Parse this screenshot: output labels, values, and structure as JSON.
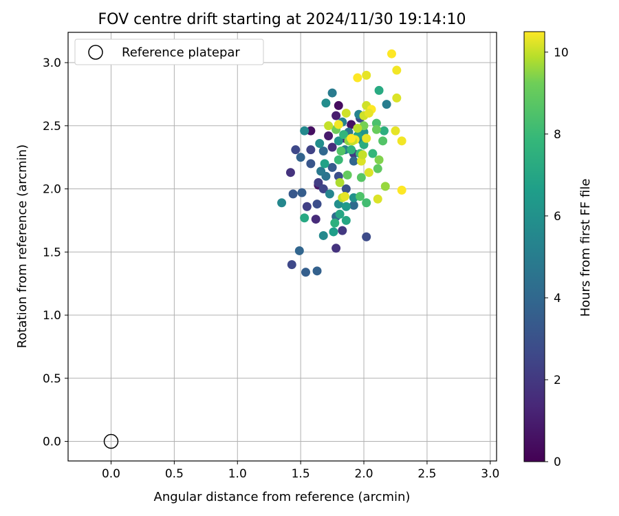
{
  "chart_data": {
    "type": "scatter",
    "title": "FOV centre drift starting at 2024/11/30 19:14:10",
    "xlabel": "Angular distance from reference (arcmin)",
    "ylabel": "Rotation from reference (arcmin)",
    "xlim": [
      -0.34,
      3.05
    ],
    "ylim": [
      -0.155,
      3.24
    ],
    "xticks": [
      "0.0",
      "0.5",
      "1.0",
      "1.5",
      "2.0",
      "2.5",
      "3.0"
    ],
    "yticks": [
      "0.0",
      "0.5",
      "1.0",
      "1.5",
      "2.0",
      "2.5",
      "3.0"
    ],
    "grid": true,
    "legend": {
      "placement": "top-left",
      "entries": [
        {
          "label": "Reference platepar",
          "marker": "open-circle"
        }
      ]
    },
    "reference_point": {
      "x": 0.0,
      "y": 0.0
    },
    "colorbar": {
      "label": "Hours from first FF file",
      "colormap": "viridis",
      "range": [
        0,
        10.5
      ],
      "ticks": [
        "0",
        "2",
        "4",
        "6",
        "8",
        "10"
      ]
    },
    "points": [
      {
        "x": 1.8,
        "y": 2.66,
        "t": 0.4
      },
      {
        "x": 1.58,
        "y": 2.46,
        "t": 0.5
      },
      {
        "x": 1.64,
        "y": 2.03,
        "t": 0.8
      },
      {
        "x": 1.78,
        "y": 2.58,
        "t": 1.0
      },
      {
        "x": 1.9,
        "y": 2.51,
        "t": 0.6
      },
      {
        "x": 1.72,
        "y": 2.42,
        "t": 0.9
      },
      {
        "x": 1.85,
        "y": 2.4,
        "t": 1.2
      },
      {
        "x": 1.75,
        "y": 2.33,
        "t": 1.6
      },
      {
        "x": 1.42,
        "y": 2.13,
        "t": 1.8
      },
      {
        "x": 1.62,
        "y": 1.76,
        "t": 1.5
      },
      {
        "x": 1.78,
        "y": 1.53,
        "t": 1.8
      },
      {
        "x": 1.83,
        "y": 1.67,
        "t": 2.0
      },
      {
        "x": 1.58,
        "y": 2.31,
        "t": 2.4
      },
      {
        "x": 1.46,
        "y": 2.31,
        "t": 2.6
      },
      {
        "x": 1.64,
        "y": 2.05,
        "t": 2.2
      },
      {
        "x": 1.68,
        "y": 2.0,
        "t": 2.5
      },
      {
        "x": 1.55,
        "y": 1.86,
        "t": 2.3
      },
      {
        "x": 1.63,
        "y": 1.88,
        "t": 2.8
      },
      {
        "x": 1.43,
        "y": 1.4,
        "t": 2.6
      },
      {
        "x": 2.02,
        "y": 1.62,
        "t": 2.7
      },
      {
        "x": 1.8,
        "y": 2.1,
        "t": 2.9
      },
      {
        "x": 1.92,
        "y": 2.28,
        "t": 2.1
      },
      {
        "x": 1.86,
        "y": 2.0,
        "t": 3.0
      },
      {
        "x": 1.97,
        "y": 2.56,
        "t": 2.8
      },
      {
        "x": 1.44,
        "y": 1.96,
        "t": 3.3
      },
      {
        "x": 1.51,
        "y": 1.97,
        "t": 3.5
      },
      {
        "x": 1.5,
        "y": 2.25,
        "t": 3.8
      },
      {
        "x": 1.58,
        "y": 2.2,
        "t": 3.2
      },
      {
        "x": 1.54,
        "y": 1.34,
        "t": 3.6
      },
      {
        "x": 1.49,
        "y": 1.51,
        "t": 3.9
      },
      {
        "x": 1.63,
        "y": 1.35,
        "t": 3.7
      },
      {
        "x": 1.75,
        "y": 2.17,
        "t": 3.4
      },
      {
        "x": 1.68,
        "y": 2.3,
        "t": 4.0
      },
      {
        "x": 1.78,
        "y": 1.78,
        "t": 4.2
      },
      {
        "x": 1.92,
        "y": 1.87,
        "t": 4.1
      },
      {
        "x": 1.92,
        "y": 2.22,
        "t": 3.9
      },
      {
        "x": 1.7,
        "y": 2.1,
        "t": 4.5
      },
      {
        "x": 1.66,
        "y": 2.14,
        "t": 4.8
      },
      {
        "x": 1.75,
        "y": 2.76,
        "t": 4.9
      },
      {
        "x": 1.88,
        "y": 2.45,
        "t": 4.6
      },
      {
        "x": 2.18,
        "y": 2.67,
        "t": 5.0
      },
      {
        "x": 1.85,
        "y": 2.31,
        "t": 5.1
      },
      {
        "x": 1.96,
        "y": 2.59,
        "t": 5.3
      },
      {
        "x": 1.83,
        "y": 2.53,
        "t": 5.2
      },
      {
        "x": 1.35,
        "y": 1.89,
        "t": 5.5
      },
      {
        "x": 1.53,
        "y": 2.46,
        "t": 5.6
      },
      {
        "x": 1.7,
        "y": 2.68,
        "t": 5.8
      },
      {
        "x": 1.68,
        "y": 1.63,
        "t": 5.6
      },
      {
        "x": 1.73,
        "y": 1.96,
        "t": 5.4
      },
      {
        "x": 1.8,
        "y": 1.88,
        "t": 5.9
      },
      {
        "x": 1.99,
        "y": 2.38,
        "t": 5.7
      },
      {
        "x": 1.65,
        "y": 2.36,
        "t": 5.8
      },
      {
        "x": 2.0,
        "y": 2.45,
        "t": 6.1
      },
      {
        "x": 1.92,
        "y": 1.93,
        "t": 6.0
      },
      {
        "x": 1.8,
        "y": 2.38,
        "t": 6.2
      },
      {
        "x": 1.86,
        "y": 1.86,
        "t": 6.4
      },
      {
        "x": 1.76,
        "y": 1.66,
        "t": 6.6
      },
      {
        "x": 2.12,
        "y": 2.78,
        "t": 7.2
      },
      {
        "x": 1.86,
        "y": 1.75,
        "t": 7.0
      },
      {
        "x": 1.53,
        "y": 1.77,
        "t": 7.1
      },
      {
        "x": 1.69,
        "y": 2.2,
        "t": 6.8
      },
      {
        "x": 1.81,
        "y": 1.8,
        "t": 7.0
      },
      {
        "x": 2.0,
        "y": 2.35,
        "t": 7.3
      },
      {
        "x": 1.95,
        "y": 2.42,
        "t": 6.9
      },
      {
        "x": 2.16,
        "y": 2.46,
        "t": 7.4
      },
      {
        "x": 1.9,
        "y": 2.31,
        "t": 7.6
      },
      {
        "x": 1.77,
        "y": 1.73,
        "t": 7.5
      },
      {
        "x": 2.07,
        "y": 2.28,
        "t": 7.8
      },
      {
        "x": 1.84,
        "y": 2.43,
        "t": 7.7
      },
      {
        "x": 1.97,
        "y": 2.28,
        "t": 8.0
      },
      {
        "x": 2.02,
        "y": 1.89,
        "t": 8.2
      },
      {
        "x": 1.8,
        "y": 2.23,
        "t": 8.0
      },
      {
        "x": 2.1,
        "y": 2.52,
        "t": 8.4
      },
      {
        "x": 1.97,
        "y": 1.94,
        "t": 8.5
      },
      {
        "x": 2.15,
        "y": 2.38,
        "t": 8.6
      },
      {
        "x": 1.98,
        "y": 2.09,
        "t": 8.7
      },
      {
        "x": 2.11,
        "y": 2.16,
        "t": 8.9
      },
      {
        "x": 1.82,
        "y": 2.3,
        "t": 8.6
      },
      {
        "x": 1.87,
        "y": 2.11,
        "t": 9.0
      },
      {
        "x": 2.1,
        "y": 2.47,
        "t": 9.1
      },
      {
        "x": 1.78,
        "y": 2.47,
        "t": 9.2
      },
      {
        "x": 2.0,
        "y": 2.5,
        "t": 9.3
      },
      {
        "x": 2.12,
        "y": 2.23,
        "t": 9.4
      },
      {
        "x": 1.88,
        "y": 2.38,
        "t": 9.5
      },
      {
        "x": 2.17,
        "y": 2.02,
        "t": 9.6
      },
      {
        "x": 1.81,
        "y": 2.05,
        "t": 9.8
      },
      {
        "x": 1.83,
        "y": 1.93,
        "t": 10.0
      },
      {
        "x": 1.86,
        "y": 2.6,
        "t": 10.1
      },
      {
        "x": 1.95,
        "y": 2.48,
        "t": 9.9
      },
      {
        "x": 2.02,
        "y": 2.9,
        "t": 10.3
      },
      {
        "x": 2.22,
        "y": 3.07,
        "t": 10.5
      },
      {
        "x": 2.26,
        "y": 2.94,
        "t": 10.4
      },
      {
        "x": 2.26,
        "y": 2.72,
        "t": 10.2
      },
      {
        "x": 1.95,
        "y": 2.88,
        "t": 10.5
      },
      {
        "x": 2.02,
        "y": 2.66,
        "t": 10.1
      },
      {
        "x": 2.25,
        "y": 2.46,
        "t": 10.3
      },
      {
        "x": 2.3,
        "y": 2.38,
        "t": 10.4
      },
      {
        "x": 2.3,
        "y": 1.99,
        "t": 10.5
      },
      {
        "x": 2.11,
        "y": 1.92,
        "t": 10.2
      },
      {
        "x": 1.72,
        "y": 2.5,
        "t": 10.0
      },
      {
        "x": 2.02,
        "y": 2.4,
        "t": 10.3
      },
      {
        "x": 1.93,
        "y": 2.39,
        "t": 10.4
      },
      {
        "x": 2.0,
        "y": 2.58,
        "t": 10.1
      },
      {
        "x": 2.06,
        "y": 2.63,
        "t": 10.5
      },
      {
        "x": 1.98,
        "y": 2.22,
        "t": 10.2
      },
      {
        "x": 1.91,
        "y": 2.38,
        "t": 10.0
      },
      {
        "x": 1.85,
        "y": 1.94,
        "t": 10.3
      },
      {
        "x": 1.8,
        "y": 2.51,
        "t": 10.4
      },
      {
        "x": 2.04,
        "y": 2.6,
        "t": 10.3
      },
      {
        "x": 1.99,
        "y": 2.27,
        "t": 10.0
      },
      {
        "x": 2.04,
        "y": 2.13,
        "t": 10.2
      },
      {
        "x": 1.9,
        "y": 2.4,
        "t": 10.5
      }
    ]
  }
}
